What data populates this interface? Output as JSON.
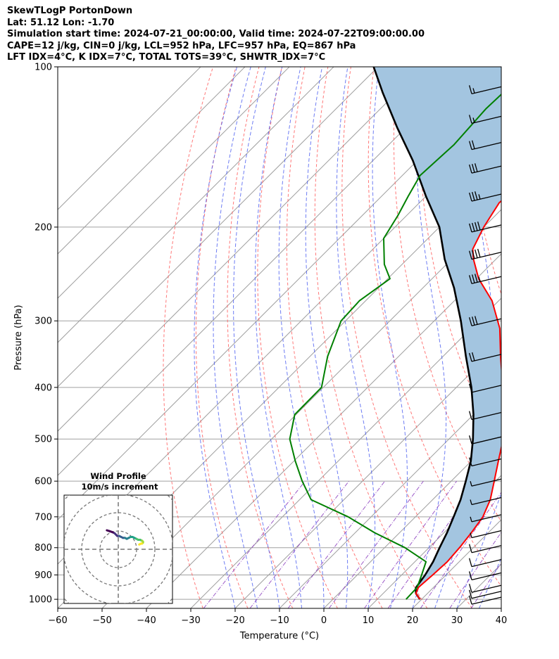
{
  "header": {
    "line1": "SkewTLogP PortonDown",
    "line2": "Lat: 51.12   Lon: -1.70",
    "line3": "Simulation start time: 2024-07-21_00:00:00, Valid time: 2024-07-22T09:00:00.00",
    "line4": "CAPE=12 j/kg, CIN=0 j/kg, LCL=952 hPa, LFC=957 hPa, EQ=867 hPa",
    "line5": "LFT IDX=4$^\\circ$C, K IDX=7$^\\circ$C, TOTAL TOTS=39$^\\circ$C, SHWTR_IDX=7$^\\circ$C"
  },
  "colors": {
    "temperature": "#ff0000",
    "dewpoint": "#008000",
    "parcel": "#000000",
    "cape_fill": "#a3c5e0",
    "dry_adiabat": "#ff6060",
    "moist_adiabat": "#4a5cf0",
    "mixing_ratio": "#8c3fbf",
    "isotherm": "#a0a0a0"
  },
  "chart_data": [
    {
      "type": "line",
      "title": "",
      "xlabel": "Temperature ($^\\circ$C)",
      "ylabel": "Pressure (hPa)",
      "xlim": [
        -60,
        40
      ],
      "ylim": [
        1040,
        100
      ],
      "y_scale": "log",
      "skew": true,
      "x_ticks": [
        "−60",
        "−50",
        "−40",
        "−30",
        "−20",
        "−10",
        "0",
        "10",
        "20",
        "30",
        "40"
      ],
      "y_ticks": [
        "100",
        "200",
        "300",
        "400",
        "500",
        "600",
        "700",
        "800",
        "900",
        "1000"
      ],
      "grid": true,
      "series": [
        {
          "name": "",
          "role": "temperature",
          "points": [
            [
              19.6,
              1000
            ],
            [
              17.4,
              975
            ],
            [
              16.6,
              950
            ],
            [
              17.0,
              900
            ],
            [
              17.3,
              850
            ],
            [
              16.9,
              800
            ],
            [
              16.2,
              750
            ],
            [
              15.2,
              700
            ],
            [
              13.0,
              650
            ],
            [
              9.7,
              600
            ],
            [
              6.1,
              550
            ],
            [
              2.2,
              500
            ],
            [
              -3.0,
              450
            ],
            [
              -9.5,
              400
            ],
            [
              -17.0,
              350
            ],
            [
              -23.5,
              310
            ],
            [
              -31.5,
              275
            ],
            [
              -39.5,
              250
            ],
            [
              -45.0,
              230
            ],
            [
              -47.5,
              220
            ],
            [
              -50.0,
              200
            ],
            [
              -52.0,
              180
            ],
            [
              -51.0,
              160
            ],
            [
              -52.5,
              140
            ],
            [
              -56.5,
              120
            ],
            [
              -60.5,
              108
            ],
            [
              -63.0,
              100
            ]
          ]
        },
        {
          "name": "",
          "role": "dewpoint",
          "points": [
            [
              16.5,
              1000
            ],
            [
              16.4,
              975
            ],
            [
              16.3,
              950
            ],
            [
              14.5,
              900
            ],
            [
              12.5,
              850
            ],
            [
              4.6,
              800
            ],
            [
              -5.6,
              750
            ],
            [
              -15.2,
              700
            ],
            [
              -27.4,
              650
            ],
            [
              -33.6,
              600
            ],
            [
              -39.7,
              550
            ],
            [
              -45.9,
              500
            ],
            [
              -50.3,
              450
            ],
            [
              -50.4,
              400
            ],
            [
              -56.0,
              350
            ],
            [
              -61.0,
              300
            ],
            [
              -61.4,
              275
            ],
            [
              -59.5,
              250
            ],
            [
              -64.0,
              235
            ],
            [
              -70.0,
              210
            ],
            [
              -72.0,
              190
            ],
            [
              -74.0,
              175
            ],
            [
              -76.0,
              160
            ],
            [
              -75.3,
              140
            ],
            [
              -76.2,
              120
            ],
            [
              -75.6,
              100
            ]
          ]
        },
        {
          "name": "",
          "role": "parcel",
          "points": [
            [
              19.6,
              1000
            ],
            [
              17.4,
              975
            ],
            [
              16.1,
              952
            ],
            [
              15.3,
              900
            ],
            [
              14.1,
              850
            ],
            [
              12.4,
              800
            ],
            [
              10.7,
              750
            ],
            [
              8.6,
              700
            ],
            [
              6.3,
              650
            ],
            [
              3.3,
              600
            ],
            [
              -0.1,
              550
            ],
            [
              -4.6,
              500
            ],
            [
              -10.0,
              450
            ],
            [
              -16.6,
              400
            ],
            [
              -24.8,
              350
            ],
            [
              -34.0,
              300
            ],
            [
              -43.0,
              260
            ],
            [
              -51.5,
              230
            ],
            [
              -60.0,
              200
            ],
            [
              -70.0,
              175
            ],
            [
              -81.0,
              150
            ],
            [
              -92.0,
              130
            ],
            [
              -103.0,
              112
            ],
            [
              -111.0,
              100
            ]
          ]
        }
      ],
      "wind_barbs": [
        {
          "p": 1000,
          "speed_kt": 10
        },
        {
          "p": 975,
          "speed_kt": 10
        },
        {
          "p": 950,
          "speed_kt": 10
        },
        {
          "p": 900,
          "speed_kt": 10
        },
        {
          "p": 850,
          "speed_kt": 10
        },
        {
          "p": 800,
          "speed_kt": 10
        },
        {
          "p": 750,
          "speed_kt": 5
        },
        {
          "p": 700,
          "speed_kt": 5
        },
        {
          "p": 650,
          "speed_kt": 5
        },
        {
          "p": 600,
          "speed_kt": 5
        },
        {
          "p": 550,
          "speed_kt": 10
        },
        {
          "p": 500,
          "speed_kt": 10
        },
        {
          "p": 450,
          "speed_kt": 10
        },
        {
          "p": 400,
          "speed_kt": 10
        },
        {
          "p": 350,
          "speed_kt": 20
        },
        {
          "p": 300,
          "speed_kt": 30
        },
        {
          "p": 250,
          "speed_kt": 35
        },
        {
          "p": 225,
          "speed_kt": 40
        },
        {
          "p": 200,
          "speed_kt": 40
        },
        {
          "p": 175,
          "speed_kt": 35
        },
        {
          "p": 155,
          "speed_kt": 30
        },
        {
          "p": 140,
          "speed_kt": 20
        },
        {
          "p": 125,
          "speed_kt": 15
        },
        {
          "p": 110,
          "speed_kt": 15
        }
      ]
    },
    {
      "type": "scatter",
      "title": "Wind Profile",
      "subtitle": "10m/s increment",
      "hodograph": [
        [
          -12,
          20
        ],
        [
          -9,
          19
        ],
        [
          -6,
          18
        ],
        [
          -4,
          17
        ],
        [
          -2,
          15
        ],
        [
          -1,
          14
        ],
        [
          1,
          14
        ],
        [
          3,
          13
        ],
        [
          5,
          12
        ],
        [
          7,
          12
        ],
        [
          9,
          11
        ],
        [
          11,
          12
        ],
        [
          13,
          13
        ],
        [
          15,
          13
        ],
        [
          17,
          12
        ],
        [
          19,
          11
        ],
        [
          21,
          10
        ],
        [
          23,
          10
        ],
        [
          25,
          9
        ],
        [
          26,
          8
        ],
        [
          26,
          7
        ],
        [
          25,
          6
        ],
        [
          24,
          6
        ],
        [
          22,
          5
        ]
      ],
      "rings": [
        10,
        20,
        30,
        40
      ]
    }
  ]
}
